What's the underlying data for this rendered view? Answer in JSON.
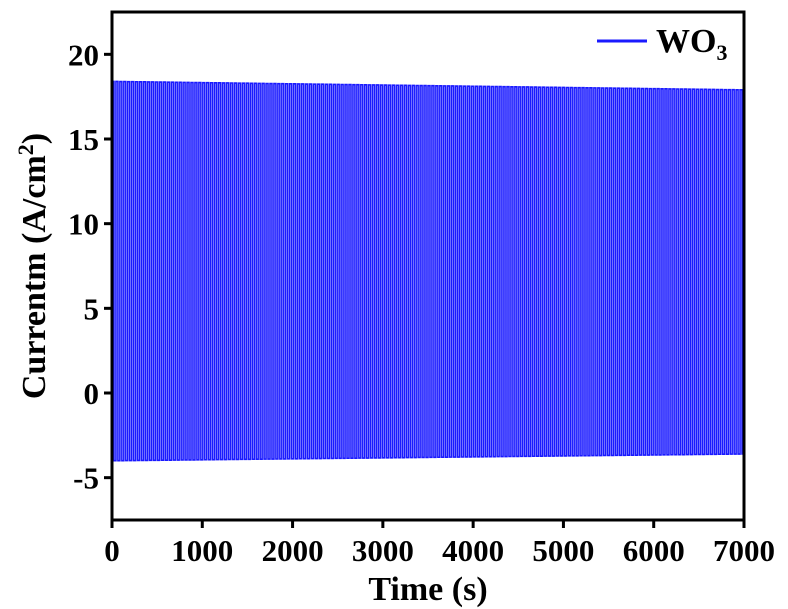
{
  "chart_data": {
    "type": "line",
    "xlabel": "Time (s)",
    "ylabel_main": "Currentm (A/cm",
    "ylabel_sup": "2",
    "ylabel_tail": ")",
    "xlim": [
      0,
      7000
    ],
    "ylim": [
      -7.5,
      22.5
    ],
    "x_ticks": [
      {
        "value": 0,
        "label": "0"
      },
      {
        "value": 1000,
        "label": "1000"
      },
      {
        "value": 2000,
        "label": "2000"
      },
      {
        "value": 3000,
        "label": "3000"
      },
      {
        "value": 4000,
        "label": "4000"
      },
      {
        "value": 5000,
        "label": "5000"
      },
      {
        "value": 6000,
        "label": "6000"
      },
      {
        "value": 7000,
        "label": "7000"
      }
    ],
    "y_ticks": [
      {
        "value": -5,
        "label": "-5"
      },
      {
        "value": 0,
        "label": "0"
      },
      {
        "value": 5,
        "label": "5"
      },
      {
        "value": 10,
        "label": "10"
      },
      {
        "value": 15,
        "label": "15"
      },
      {
        "value": 20,
        "label": "20"
      }
    ],
    "legend_position": "top-right",
    "grid": false,
    "series": [
      {
        "name_main": "WO",
        "name_sub": "3",
        "color": "#1a1aff",
        "pattern": "square-wave chopped light on/off",
        "cycle_count": 160,
        "baseline": 0.0,
        "on_peak": {
          "x": [
            0,
            7000
          ],
          "y": [
            18.4,
            17.9
          ]
        },
        "off_trough": {
          "x": [
            0,
            7000
          ],
          "y": [
            -4.0,
            -3.6
          ]
        }
      }
    ]
  }
}
